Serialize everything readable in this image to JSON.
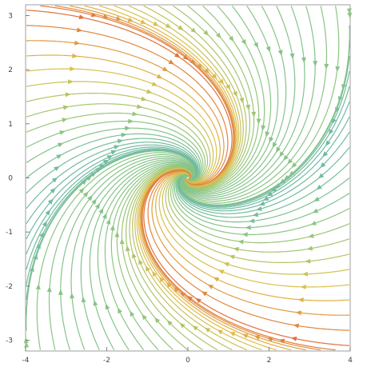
{
  "chart_data": {
    "type": "streamplot",
    "title": "",
    "xlabel": "",
    "ylabel": "",
    "xlim": [
      -4,
      4
    ],
    "ylim": [
      -3.2,
      3.2
    ],
    "x_ticks": [
      {
        "value": -4,
        "label": "-4"
      },
      {
        "value": -2,
        "label": "-2"
      },
      {
        "value": 0,
        "label": "0"
      },
      {
        "value": 2,
        "label": "2"
      },
      {
        "value": 4,
        "label": "4"
      }
    ],
    "y_ticks": [
      {
        "value": -3,
        "label": "-3"
      },
      {
        "value": -2,
        "label": "-2"
      },
      {
        "value": -1,
        "label": "-1"
      },
      {
        "value": 0,
        "label": "0"
      },
      {
        "value": 1,
        "label": "1"
      },
      {
        "value": 2,
        "label": "2"
      },
      {
        "value": 3,
        "label": "3"
      }
    ],
    "vector_field": {
      "dx": "-x + 1.5*y",
      "dy": "-0.6*x - 0.9*y",
      "fixed_point": [
        0,
        0
      ],
      "behavior": "stable spiral sink at origin"
    },
    "color_by": "speed",
    "color_scale": [
      "#3a3aa0",
      "#3f7fc4",
      "#5fb3b3",
      "#8fc77f",
      "#e0c04a",
      "#e06a3a"
    ],
    "grid": false,
    "frame": true,
    "legend": "none"
  }
}
